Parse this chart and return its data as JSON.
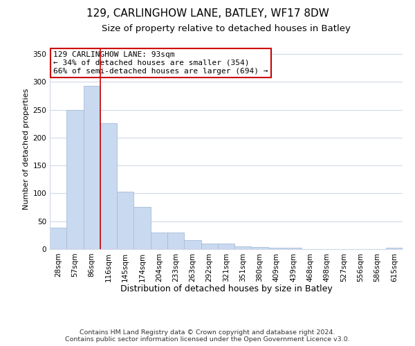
{
  "title": "129, CARLINGHOW LANE, BATLEY, WF17 8DW",
  "subtitle": "Size of property relative to detached houses in Batley",
  "xlabel": "Distribution of detached houses by size in Batley",
  "ylabel": "Number of detached properties",
  "bar_labels": [
    "28sqm",
    "57sqm",
    "86sqm",
    "116sqm",
    "145sqm",
    "174sqm",
    "204sqm",
    "233sqm",
    "263sqm",
    "292sqm",
    "321sqm",
    "351sqm",
    "380sqm",
    "409sqm",
    "439sqm",
    "468sqm",
    "498sqm",
    "527sqm",
    "556sqm",
    "586sqm",
    "615sqm"
  ],
  "bar_heights": [
    38,
    250,
    293,
    226,
    103,
    76,
    30,
    30,
    16,
    10,
    10,
    5,
    4,
    3,
    2,
    0,
    0,
    0,
    0,
    0,
    2
  ],
  "bar_color": "#c9d9f0",
  "bar_edge_color": "#a8bcd8",
  "vline_x_idx": 2,
  "vline_color": "#cc0000",
  "ylim": [
    0,
    360
  ],
  "yticks": [
    0,
    50,
    100,
    150,
    200,
    250,
    300,
    350
  ],
  "annotation_title": "129 CARLINGHOW LANE: 93sqm",
  "annotation_line1": "← 34% of detached houses are smaller (354)",
  "annotation_line2": "66% of semi-detached houses are larger (694) →",
  "annotation_box_color": "#ffffff",
  "annotation_box_edge": "#cc0000",
  "footer_line1": "Contains HM Land Registry data © Crown copyright and database right 2024.",
  "footer_line2": "Contains public sector information licensed under the Open Government Licence v3.0.",
  "background_color": "#ffffff",
  "grid_color": "#d0d8e8",
  "title_fontsize": 11,
  "subtitle_fontsize": 9.5,
  "xlabel_fontsize": 9,
  "ylabel_fontsize": 8,
  "tick_fontsize": 7.5,
  "annot_fontsize": 8,
  "footer_fontsize": 6.8
}
